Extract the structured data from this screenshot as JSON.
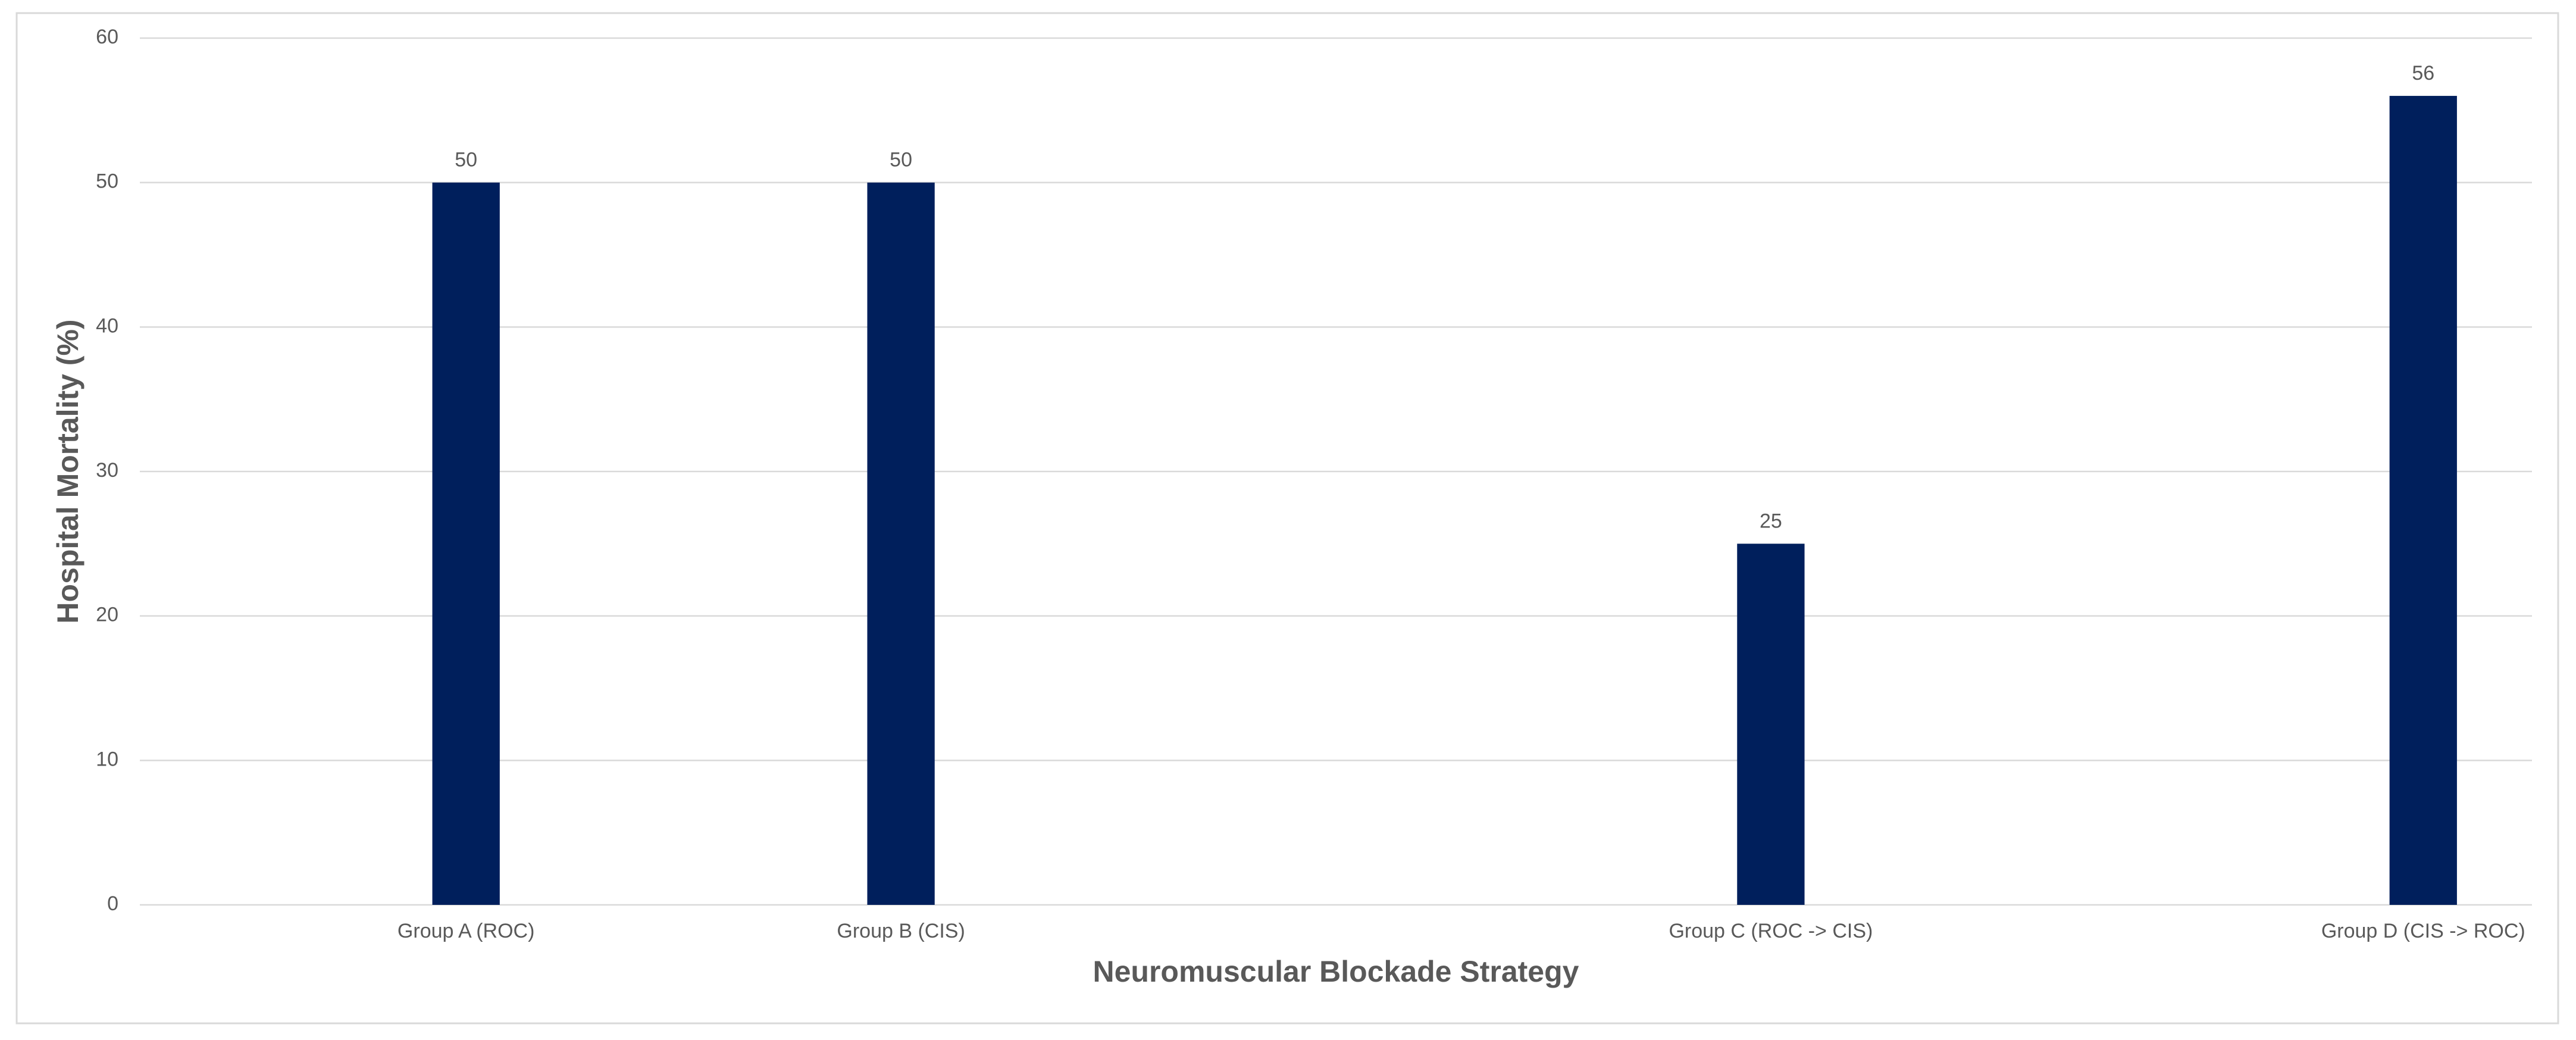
{
  "chart_data": {
    "type": "bar",
    "x_label": "Neuromuscular Blockade Strategy",
    "y_label": "Hospital Mortality (%)",
    "categories": [
      null,
      "Group A (ROC)",
      null,
      "Group B (CIS)",
      null,
      null,
      null,
      "Group C (ROC -> CIS)",
      null,
      null,
      "Group D (CIS -> ROC)"
    ],
    "values": [
      null,
      50,
      null,
      50,
      null,
      null,
      null,
      25,
      null,
      null,
      56
    ],
    "color": "#001f5c",
    "ylim": [
      0,
      60
    ],
    "yticks": [
      0,
      10,
      20,
      30,
      40,
      50,
      60
    ],
    "grid": true,
    "data_labels": true
  }
}
